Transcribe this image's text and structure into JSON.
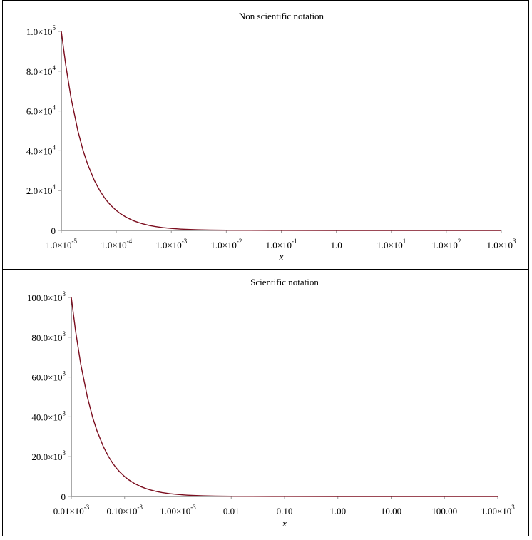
{
  "chart_data": [
    {
      "type": "line",
      "title": "Non scientific notation",
      "xlabel": "x",
      "xscale": "log",
      "color": "#7b0d1e",
      "xlim": [
        1e-05,
        1000
      ],
      "ylim": [
        0,
        100000
      ],
      "xticks": [
        {
          "value": 1e-05,
          "label": "1.0×10",
          "sup": "-5"
        },
        {
          "value": 0.0001,
          "label": "1.0×10",
          "sup": "-4"
        },
        {
          "value": 0.001,
          "label": "1.0×10",
          "sup": "-3"
        },
        {
          "value": 0.01,
          "label": "1.0×10",
          "sup": "-2"
        },
        {
          "value": 0.1,
          "label": "1.0×10",
          "sup": "-1"
        },
        {
          "value": 1,
          "label": "1.0"
        },
        {
          "value": 10,
          "label": "1.0×10",
          "sup": "1"
        },
        {
          "value": 100,
          "label": "1.0×10",
          "sup": "2"
        },
        {
          "value": 1000,
          "label": "1.0×10",
          "sup": "3"
        }
      ],
      "yticks": [
        0,
        {
          "value": 20000,
          "label": "2.0×10",
          "sup": "4"
        },
        {
          "value": 40000,
          "label": "4.0×10",
          "sup": "4"
        },
        {
          "value": 60000,
          "label": "6.0×10",
          "sup": "4"
        },
        {
          "value": 80000,
          "label": "8.0×10",
          "sup": "4"
        },
        {
          "value": 100000,
          "label": "1.0×10",
          "sup": "5"
        }
      ],
      "x": [
        1e-05,
        1.2e-05,
        1.5e-05,
        2e-05,
        2.5e-05,
        3e-05,
        4e-05,
        5e-05,
        6e-05,
        7e-05,
        8e-05,
        0.0001,
        0.00012,
        0.00015,
        0.0002,
        0.00025,
        0.0003,
        0.0004,
        0.0005,
        0.0007,
        0.001,
        0.0015,
        0.002,
        0.003,
        0.005,
        0.01,
        0.1,
        1,
        10,
        100,
        1000
      ],
      "values": [
        100000,
        83333,
        66667,
        50000,
        40000,
        33333,
        25000,
        20000,
        16667,
        14286,
        12500,
        10000,
        8333,
        6667,
        5000,
        4000,
        3333,
        2500,
        2000,
        1429,
        1000,
        667,
        500,
        333,
        200,
        100,
        10,
        1,
        0.1,
        0.01,
        0.001
      ]
    },
    {
      "type": "line",
      "title": "Scientific notation",
      "xlabel": "x",
      "xscale": "log",
      "color": "#7b0d1e",
      "xlim": [
        1e-05,
        1000
      ],
      "ylim": [
        0,
        100000
      ],
      "xticks": [
        {
          "value": 1e-05,
          "label": "0.01×10",
          "sup": "-3"
        },
        {
          "value": 0.0001,
          "label": "0.10×10",
          "sup": "-3"
        },
        {
          "value": 0.001,
          "label": "1.00×10",
          "sup": "-3"
        },
        {
          "value": 0.01,
          "label": "0.01"
        },
        {
          "value": 0.1,
          "label": "0.10"
        },
        {
          "value": 1,
          "label": "1.00"
        },
        {
          "value": 10,
          "label": "10.00"
        },
        {
          "value": 100,
          "label": "100.00"
        },
        {
          "value": 1000,
          "label": "1.00×10",
          "sup": "3"
        }
      ],
      "yticks": [
        0,
        {
          "value": 20000,
          "label": "20.0×10",
          "sup": "3"
        },
        {
          "value": 40000,
          "label": "40.0×10",
          "sup": "3"
        },
        {
          "value": 60000,
          "label": "60.0×10",
          "sup": "3"
        },
        {
          "value": 80000,
          "label": "80.0×10",
          "sup": "3"
        },
        {
          "value": 100000,
          "label": "100.0×10",
          "sup": "3"
        }
      ],
      "x": [
        1e-05,
        1.2e-05,
        1.5e-05,
        2e-05,
        2.5e-05,
        3e-05,
        4e-05,
        5e-05,
        6e-05,
        7e-05,
        8e-05,
        0.0001,
        0.00012,
        0.00015,
        0.0002,
        0.00025,
        0.0003,
        0.0004,
        0.0005,
        0.0007,
        0.001,
        0.0015,
        0.002,
        0.003,
        0.005,
        0.01,
        0.1,
        1,
        10,
        100,
        1000
      ],
      "values": [
        100000,
        83333,
        66667,
        50000,
        40000,
        33333,
        25000,
        20000,
        16667,
        14286,
        12500,
        10000,
        8333,
        6667,
        5000,
        4000,
        3333,
        2500,
        2000,
        1429,
        1000,
        667,
        500,
        333,
        200,
        100,
        10,
        1,
        0.1,
        0.01,
        0.001
      ]
    }
  ]
}
